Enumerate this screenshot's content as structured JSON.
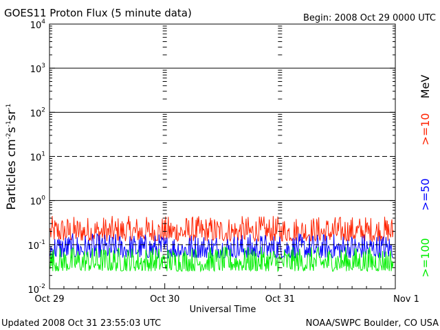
{
  "header": {
    "title": "GOES11 Proton Flux (5 minute data)",
    "begin": "Begin: 2008 Oct 29 0000 UTC"
  },
  "footer": {
    "updated": "Updated 2008 Oct 31 23:55:03 UTC",
    "source": "NOAA/SWPC Boulder, CO USA"
  },
  "colors": {
    "ge10": "#ff2200",
    "ge50": "#0000ff",
    "ge100": "#00ee00",
    "axis": "#000000",
    "background": "#ffffff"
  },
  "chart_data": {
    "type": "line",
    "title": "GOES11 Proton Flux (5 minute data)",
    "xlabel": "Universal Time",
    "ylabel": "Particles cm⁻²s⁻¹sr⁻¹",
    "ylabel_parts": {
      "base": "Particles cm",
      "s": "s",
      "sr": "sr",
      "exp": "-1",
      "exp2": "-2"
    },
    "yscale": "log",
    "ylim": [
      0.01,
      10000
    ],
    "y_ticks": [
      {
        "value": 0.01,
        "base": "10",
        "exp": "-2"
      },
      {
        "value": 0.1,
        "base": "10",
        "exp": "-1"
      },
      {
        "value": 1,
        "base": "10",
        "exp": "0"
      },
      {
        "value": 10,
        "base": "10",
        "exp": "1"
      },
      {
        "value": 100,
        "base": "10",
        "exp": "2"
      },
      {
        "value": 1000,
        "base": "10",
        "exp": "3"
      },
      {
        "value": 10000,
        "base": "10",
        "exp": "4"
      }
    ],
    "xlim": [
      "2008-10-29",
      "2008-11-01"
    ],
    "x_ticks": [
      "Oct 29",
      "Oct 30",
      "Oct 31",
      "Nov 1"
    ],
    "horizontal_lines": [
      {
        "value": 1000,
        "style": "solid"
      },
      {
        "value": 100,
        "style": "solid"
      },
      {
        "value": 10,
        "style": "dashed"
      },
      {
        "value": 1,
        "style": "solid"
      },
      {
        "value": 0.1,
        "style": "dashed"
      }
    ],
    "series": [
      {
        "name": ">=10 MeV",
        "legend": ">=10",
        "color": "#ff2200",
        "typical_low": 0.12,
        "typical_high": 0.45
      },
      {
        "name": ">=50 MeV",
        "legend": ">=50",
        "color": "#0000ff",
        "typical_low": 0.05,
        "typical_high": 0.18
      },
      {
        "name": ">=100 MeV",
        "legend": ">=100",
        "color": "#00ee00",
        "typical_low": 0.025,
        "typical_high": 0.09
      }
    ],
    "legend_unit": "MeV",
    "legend_placement": "right"
  }
}
